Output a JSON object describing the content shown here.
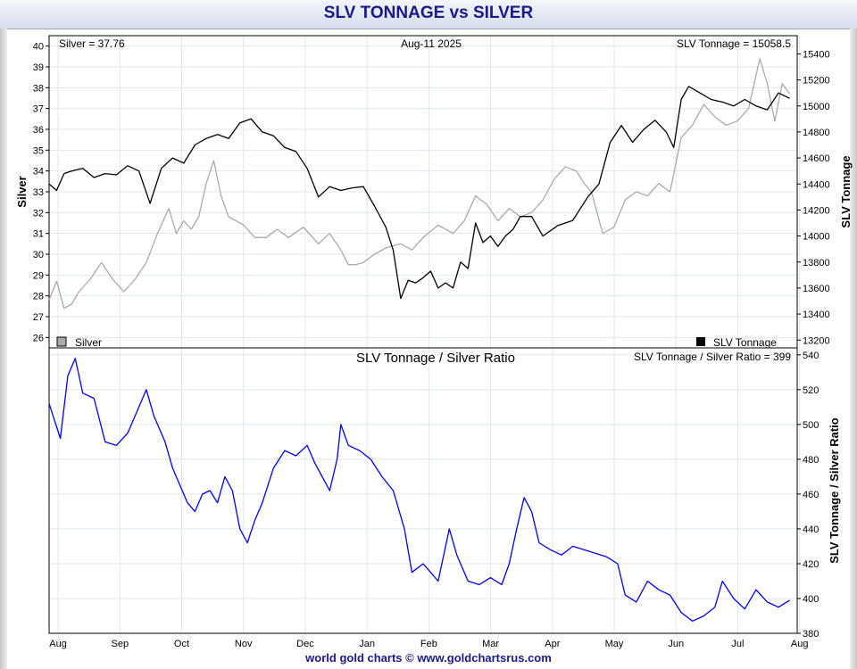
{
  "header": {
    "title": "SLV TONNAGE vs SILVER"
  },
  "footer": {
    "credit": "world gold charts © www.goldchartsrus.com"
  },
  "top_panel": {
    "silver_readout": "Silver = 37.76",
    "date_readout": "Aug-11  2025",
    "tonnage_readout": "SLV Tonnage = 15058.5",
    "legend_silver": "Silver",
    "legend_tonnage": "SLV Tonnage"
  },
  "bottom_panel": {
    "title": "SLV Tonnage / Silver Ratio",
    "ratio_readout": "SLV Tonnage / Silver Ratio = 399"
  },
  "colors": {
    "silver": "#aaaaaa",
    "tonnage": "#000000",
    "ratio": "#0000ee",
    "title": "#1a1a8c",
    "grid": "#dfe6ee"
  },
  "chart_data": [
    {
      "type": "line",
      "panel": "top",
      "x_tick_labels": [
        "Aug",
        "Sep",
        "Oct",
        "Nov",
        "Dec",
        "Jan",
        "Feb",
        "Mar",
        "Apr",
        "May",
        "Jun",
        "Jul",
        "Aug"
      ],
      "ylabel": "Silver",
      "ylim": [
        25.5,
        40.5
      ],
      "yticks": [
        26,
        27,
        28,
        29,
        30,
        31,
        32,
        33,
        34,
        35,
        36,
        37,
        38,
        39,
        40
      ],
      "y2label": "SLV Tonnage",
      "y2lim": [
        13140,
        15540
      ],
      "y2ticks": [
        13200,
        13400,
        13600,
        13800,
        14000,
        14200,
        14400,
        14600,
        14800,
        15000,
        15200,
        15400
      ],
      "grid": true,
      "legend": "bottom",
      "series": [
        {
          "name": "Silver",
          "axis": "left",
          "color": "#aaaaaa",
          "points": [
            [
              0.0,
              27.8
            ],
            [
              0.01,
              28.7
            ],
            [
              0.02,
              27.4
            ],
            [
              0.03,
              27.6
            ],
            [
              0.04,
              28.2
            ],
            [
              0.055,
              28.8
            ],
            [
              0.07,
              29.6
            ],
            [
              0.085,
              28.8
            ],
            [
              0.1,
              28.2
            ],
            [
              0.115,
              28.8
            ],
            [
              0.13,
              29.6
            ],
            [
              0.145,
              31.0
            ],
            [
              0.16,
              32.2
            ],
            [
              0.17,
              31.0
            ],
            [
              0.18,
              31.6
            ],
            [
              0.19,
              31.2
            ],
            [
              0.2,
              31.8
            ],
            [
              0.21,
              33.4
            ],
            [
              0.22,
              34.5
            ],
            [
              0.23,
              32.8
            ],
            [
              0.24,
              31.8
            ],
            [
              0.26,
              31.4
            ],
            [
              0.275,
              30.8
            ],
            [
              0.29,
              30.8
            ],
            [
              0.305,
              31.2
            ],
            [
              0.32,
              30.8
            ],
            [
              0.34,
              31.3
            ],
            [
              0.36,
              30.5
            ],
            [
              0.375,
              31.0
            ],
            [
              0.39,
              30.2
            ],
            [
              0.4,
              29.5
            ],
            [
              0.41,
              29.5
            ],
            [
              0.42,
              29.6
            ],
            [
              0.435,
              30.0
            ],
            [
              0.45,
              30.3
            ],
            [
              0.47,
              30.5
            ],
            [
              0.485,
              30.2
            ],
            [
              0.5,
              30.8
            ],
            [
              0.52,
              31.4
            ],
            [
              0.54,
              31.0
            ],
            [
              0.555,
              31.6
            ],
            [
              0.57,
              32.8
            ],
            [
              0.585,
              32.4
            ],
            [
              0.6,
              31.6
            ],
            [
              0.615,
              32.2
            ],
            [
              0.63,
              31.8
            ],
            [
              0.645,
              32.0
            ],
            [
              0.66,
              32.6
            ],
            [
              0.675,
              33.6
            ],
            [
              0.69,
              34.2
            ],
            [
              0.705,
              34.0
            ],
            [
              0.715,
              33.4
            ],
            [
              0.725,
              33.0
            ],
            [
              0.74,
              31.0
            ],
            [
              0.755,
              31.3
            ],
            [
              0.77,
              32.6
            ],
            [
              0.785,
              33.0
            ],
            [
              0.8,
              32.8
            ],
            [
              0.815,
              33.4
            ],
            [
              0.83,
              33.0
            ],
            [
              0.845,
              35.6
            ],
            [
              0.86,
              36.2
            ],
            [
              0.875,
              37.2
            ],
            [
              0.89,
              36.6
            ],
            [
              0.905,
              36.2
            ],
            [
              0.92,
              36.4
            ],
            [
              0.935,
              37.0
            ],
            [
              0.95,
              39.4
            ],
            [
              0.96,
              38.2
            ],
            [
              0.97,
              36.4
            ],
            [
              0.98,
              38.2
            ],
            [
              0.99,
              37.7
            ]
          ]
        },
        {
          "name": "SLV Tonnage",
          "axis": "right",
          "color": "#000000",
          "points": [
            [
              0.0,
              14400
            ],
            [
              0.01,
              14350
            ],
            [
              0.02,
              14480
            ],
            [
              0.03,
              14500
            ],
            [
              0.045,
              14520
            ],
            [
              0.06,
              14450
            ],
            [
              0.075,
              14480
            ],
            [
              0.09,
              14470
            ],
            [
              0.105,
              14540
            ],
            [
              0.12,
              14500
            ],
            [
              0.135,
              14250
            ],
            [
              0.15,
              14520
            ],
            [
              0.165,
              14600
            ],
            [
              0.18,
              14560
            ],
            [
              0.195,
              14700
            ],
            [
              0.21,
              14750
            ],
            [
              0.225,
              14780
            ],
            [
              0.24,
              14750
            ],
            [
              0.255,
              14870
            ],
            [
              0.27,
              14900
            ],
            [
              0.285,
              14800
            ],
            [
              0.3,
              14770
            ],
            [
              0.315,
              14680
            ],
            [
              0.33,
              14650
            ],
            [
              0.345,
              14520
            ],
            [
              0.36,
              14300
            ],
            [
              0.375,
              14380
            ],
            [
              0.39,
              14350
            ],
            [
              0.405,
              14370
            ],
            [
              0.42,
              14380
            ],
            [
              0.435,
              14230
            ],
            [
              0.45,
              14070
            ],
            [
              0.46,
              13890
            ],
            [
              0.47,
              13520
            ],
            [
              0.48,
              13660
            ],
            [
              0.49,
              13640
            ],
            [
              0.5,
              13680
            ],
            [
              0.51,
              13730
            ],
            [
              0.52,
              13600
            ],
            [
              0.53,
              13640
            ],
            [
              0.54,
              13600
            ],
            [
              0.55,
              13800
            ],
            [
              0.56,
              13750
            ],
            [
              0.57,
              14100
            ],
            [
              0.58,
              13950
            ],
            [
              0.59,
              14000
            ],
            [
              0.6,
              13920
            ],
            [
              0.61,
              14000
            ],
            [
              0.62,
              14050
            ],
            [
              0.63,
              14150
            ],
            [
              0.645,
              14150
            ],
            [
              0.66,
              14000
            ],
            [
              0.68,
              14080
            ],
            [
              0.7,
              14120
            ],
            [
              0.72,
              14300
            ],
            [
              0.735,
              14400
            ],
            [
              0.75,
              14720
            ],
            [
              0.765,
              14850
            ],
            [
              0.78,
              14720
            ],
            [
              0.795,
              14820
            ],
            [
              0.81,
              14890
            ],
            [
              0.825,
              14800
            ],
            [
              0.835,
              14680
            ],
            [
              0.845,
              15050
            ],
            [
              0.855,
              15150
            ],
            [
              0.87,
              15100
            ],
            [
              0.885,
              15050
            ],
            [
              0.9,
              15030
            ],
            [
              0.915,
              15000
            ],
            [
              0.93,
              15050
            ],
            [
              0.945,
              15000
            ],
            [
              0.96,
              14970
            ],
            [
              0.975,
              15100
            ],
            [
              0.99,
              15058
            ]
          ]
        }
      ]
    },
    {
      "type": "line",
      "panel": "bottom",
      "title": "SLV Tonnage / Silver Ratio",
      "x_tick_labels": [
        "Aug",
        "Sep",
        "Oct",
        "Nov",
        "Dec",
        "Jan",
        "Feb",
        "Mar",
        "Apr",
        "May",
        "Jun",
        "Jul",
        "Aug"
      ],
      "y2label": "SLV Tonnage / Silver Ratio",
      "ylim": [
        380,
        544
      ],
      "yticks": [
        380,
        400,
        420,
        440,
        460,
        480,
        500,
        520,
        540
      ],
      "grid": true,
      "series": [
        {
          "name": "SLV Tonnage / Silver Ratio",
          "color": "#0000ee",
          "points": [
            [
              0.0,
              512
            ],
            [
              0.015,
              492
            ],
            [
              0.025,
              528
            ],
            [
              0.035,
              538
            ],
            [
              0.045,
              518
            ],
            [
              0.06,
              515
            ],
            [
              0.075,
              490
            ],
            [
              0.09,
              488
            ],
            [
              0.105,
              495
            ],
            [
              0.12,
              510
            ],
            [
              0.13,
              520
            ],
            [
              0.14,
              505
            ],
            [
              0.155,
              490
            ],
            [
              0.165,
              475
            ],
            [
              0.175,
              465
            ],
            [
              0.185,
              455
            ],
            [
              0.195,
              450
            ],
            [
              0.205,
              460
            ],
            [
              0.215,
              462
            ],
            [
              0.225,
              455
            ],
            [
              0.235,
              470
            ],
            [
              0.245,
              462
            ],
            [
              0.255,
              440
            ],
            [
              0.265,
              432
            ],
            [
              0.275,
              445
            ],
            [
              0.285,
              455
            ],
            [
              0.3,
              475
            ],
            [
              0.315,
              485
            ],
            [
              0.33,
              482
            ],
            [
              0.345,
              488
            ],
            [
              0.355,
              478
            ],
            [
              0.365,
              470
            ],
            [
              0.375,
              462
            ],
            [
              0.385,
              480
            ],
            [
              0.39,
              500
            ],
            [
              0.4,
              488
            ],
            [
              0.415,
              485
            ],
            [
              0.43,
              480
            ],
            [
              0.445,
              470
            ],
            [
              0.46,
              462
            ],
            [
              0.475,
              440
            ],
            [
              0.485,
              415
            ],
            [
              0.5,
              420
            ],
            [
              0.51,
              415
            ],
            [
              0.52,
              410
            ],
            [
              0.535,
              440
            ],
            [
              0.545,
              425
            ],
            [
              0.56,
              410
            ],
            [
              0.575,
              408
            ],
            [
              0.59,
              412
            ],
            [
              0.605,
              408
            ],
            [
              0.615,
              420
            ],
            [
              0.625,
              440
            ],
            [
              0.635,
              458
            ],
            [
              0.645,
              450
            ],
            [
              0.655,
              432
            ],
            [
              0.67,
              428
            ],
            [
              0.685,
              425
            ],
            [
              0.7,
              430
            ],
            [
              0.715,
              428
            ],
            [
              0.73,
              426
            ],
            [
              0.745,
              424
            ],
            [
              0.76,
              420
            ],
            [
              0.77,
              402
            ],
            [
              0.785,
              398
            ],
            [
              0.8,
              410
            ],
            [
              0.815,
              405
            ],
            [
              0.83,
              402
            ],
            [
              0.845,
              392
            ],
            [
              0.86,
              387
            ],
            [
              0.875,
              390
            ],
            [
              0.89,
              395
            ],
            [
              0.9,
              410
            ],
            [
              0.915,
              400
            ],
            [
              0.93,
              394
            ],
            [
              0.945,
              405
            ],
            [
              0.96,
              398
            ],
            [
              0.975,
              395
            ],
            [
              0.99,
              399
            ]
          ]
        }
      ]
    }
  ]
}
